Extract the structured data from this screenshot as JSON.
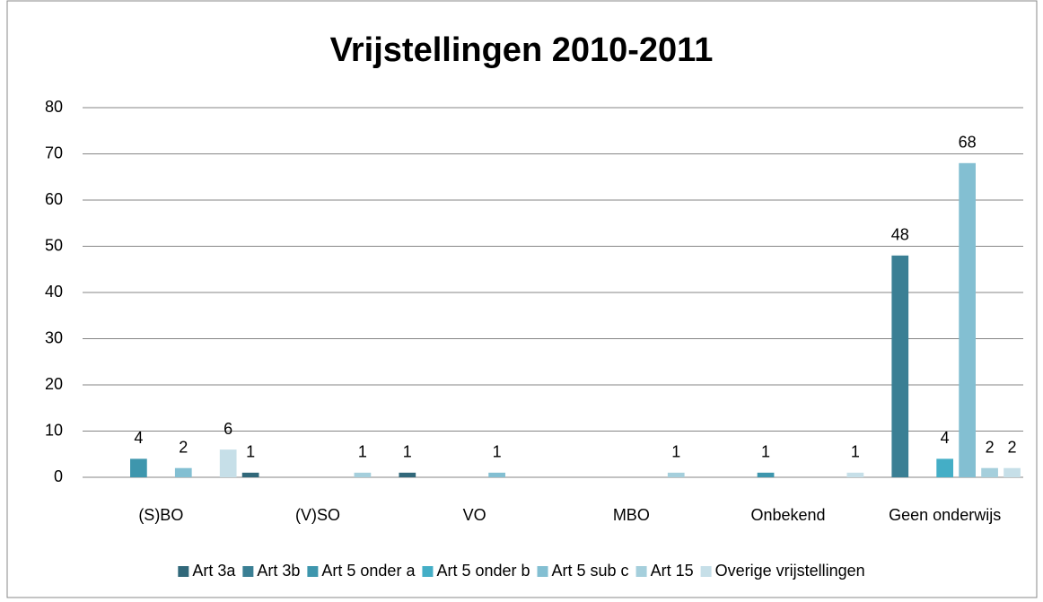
{
  "chart_data": {
    "type": "bar",
    "title": "Vrijstellingen 2010-2011",
    "categories": [
      "(S)BO",
      "(V)SO",
      "VO",
      "MBO",
      "Onbekend",
      "Geen onderwijs"
    ],
    "series": [
      {
        "name": "Art 3a",
        "color": "#31687a",
        "values": [
          null,
          1,
          1,
          null,
          null,
          null
        ]
      },
      {
        "name": "Art 3b",
        "color": "#3a7f94",
        "values": [
          null,
          null,
          null,
          null,
          null,
          48
        ]
      },
      {
        "name": "Art 5 onder a",
        "color": "#3e96ad",
        "values": [
          4,
          null,
          null,
          null,
          1,
          null
        ]
      },
      {
        "name": "Art 5 onder b",
        "color": "#44aec6",
        "values": [
          null,
          null,
          null,
          null,
          null,
          4
        ]
      },
      {
        "name": "Art 5 sub c",
        "color": "#83bfd2",
        "values": [
          2,
          null,
          1,
          null,
          null,
          68
        ]
      },
      {
        "name": "Art 15",
        "color": "#a5cfdc",
        "values": [
          null,
          1,
          null,
          1,
          null,
          2
        ]
      },
      {
        "name": "Overige vrijstellingen",
        "color": "#c6dfe8",
        "values": [
          6,
          null,
          null,
          null,
          1,
          2
        ]
      }
    ],
    "ylim": [
      0,
      80
    ],
    "yticks": [
      0,
      10,
      20,
      30,
      40,
      50,
      60,
      70,
      80
    ],
    "grid": true,
    "legend": "bottom"
  }
}
